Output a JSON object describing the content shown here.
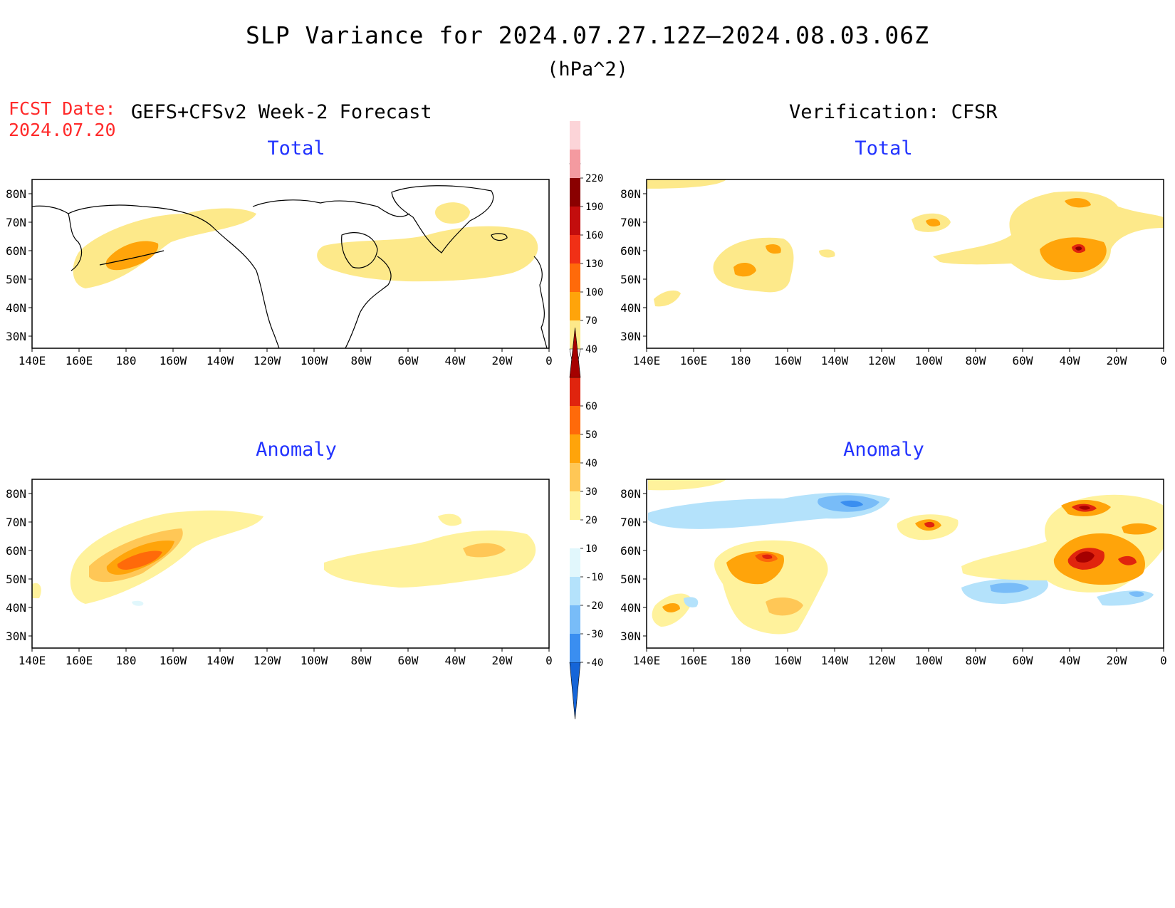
{
  "header": {
    "title": "SLP Variance for 2024.07.27.12Z—2024.08.03.06Z",
    "units": "(hPa^2)",
    "fcst_label": "FCST Date:",
    "fcst_date": "2024.07.20",
    "forecast_title": "GEFS+CFSv2 Week-2 Forecast",
    "verification_title": "Verification: CFSR"
  },
  "panels": {
    "fc_total_title": "Total",
    "vf_total_title": "Total",
    "fc_anom_title": "Anomaly",
    "vf_anom_title": "Anomaly"
  },
  "axes": {
    "lat_labels": [
      "80N",
      "70N",
      "60N",
      "50N",
      "40N",
      "30N"
    ],
    "lon_labels": [
      "140E",
      "160E",
      "180",
      "160W",
      "140W",
      "120W",
      "100W",
      "80W",
      "60W",
      "40W",
      "20W",
      "0"
    ]
  },
  "colorbars": {
    "total": {
      "levels": [
        "40",
        "70",
        "100",
        "130",
        "160",
        "190",
        "220"
      ],
      "colors": [
        "#fde98a",
        "#ffa40a",
        "#ff6a0a",
        "#f03016",
        "#c30d0d",
        "#8a0000",
        "#f49aa0",
        "#fcd4d8"
      ]
    },
    "anomaly": {
      "levels": [
        "-40",
        "-30",
        "-20",
        "-10",
        "10",
        "20",
        "30",
        "40",
        "50",
        "60"
      ],
      "colors": [
        "#1565d8",
        "#3a8ef0",
        "#78bcf8",
        "#b4e2fb",
        "#e1f7fc",
        "#ffffff",
        "#fff29c",
        "#ffc756",
        "#ffa40a",
        "#ff6a0a",
        "#e0240e",
        "#a50000"
      ]
    }
  },
  "colors": {
    "title_blue": "#2233ff",
    "fcst_red": "#ff2a2a",
    "light_yellow": "#fde98a",
    "orange": "#ffa40a",
    "dark_orange": "#ff6a0a",
    "red": "#e0240e",
    "dark_red": "#a50000",
    "light_blue": "#b4e2fb",
    "mid_blue": "#78bcf8",
    "blue": "#3a8ef0"
  }
}
